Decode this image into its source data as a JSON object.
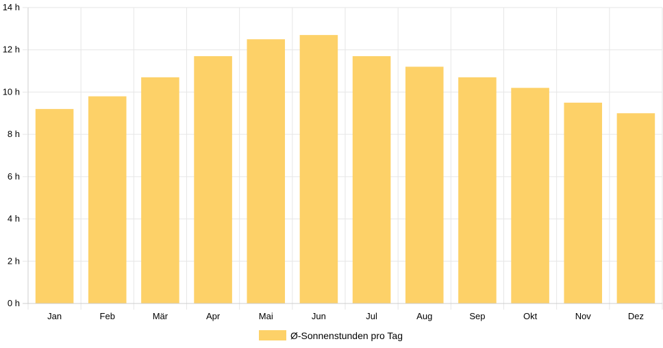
{
  "chart_data": {
    "type": "bar",
    "categories": [
      "Jan",
      "Feb",
      "Mär",
      "Apr",
      "Mai",
      "Jun",
      "Jul",
      "Aug",
      "Sep",
      "Okt",
      "Nov",
      "Dez"
    ],
    "series": [
      {
        "name": "Ø-Sonnenstunden pro Tag",
        "values": [
          9.2,
          9.8,
          10.7,
          11.7,
          12.5,
          12.7,
          11.7,
          11.2,
          10.7,
          10.2,
          9.5,
          9.0
        ]
      }
    ],
    "ylim": [
      0,
      14
    ],
    "yticks": [
      0,
      2,
      4,
      6,
      8,
      10,
      12,
      14
    ],
    "ytick_labels": [
      "0 h",
      "2 h",
      "4 h",
      "6 h",
      "8 h",
      "10 h",
      "12 h",
      "14 h"
    ],
    "grid": true,
    "legend": "bottom",
    "colors": {
      "bar": "#fdd168",
      "grid": "#e6e6e6",
      "axis": "#cccccc"
    }
  }
}
